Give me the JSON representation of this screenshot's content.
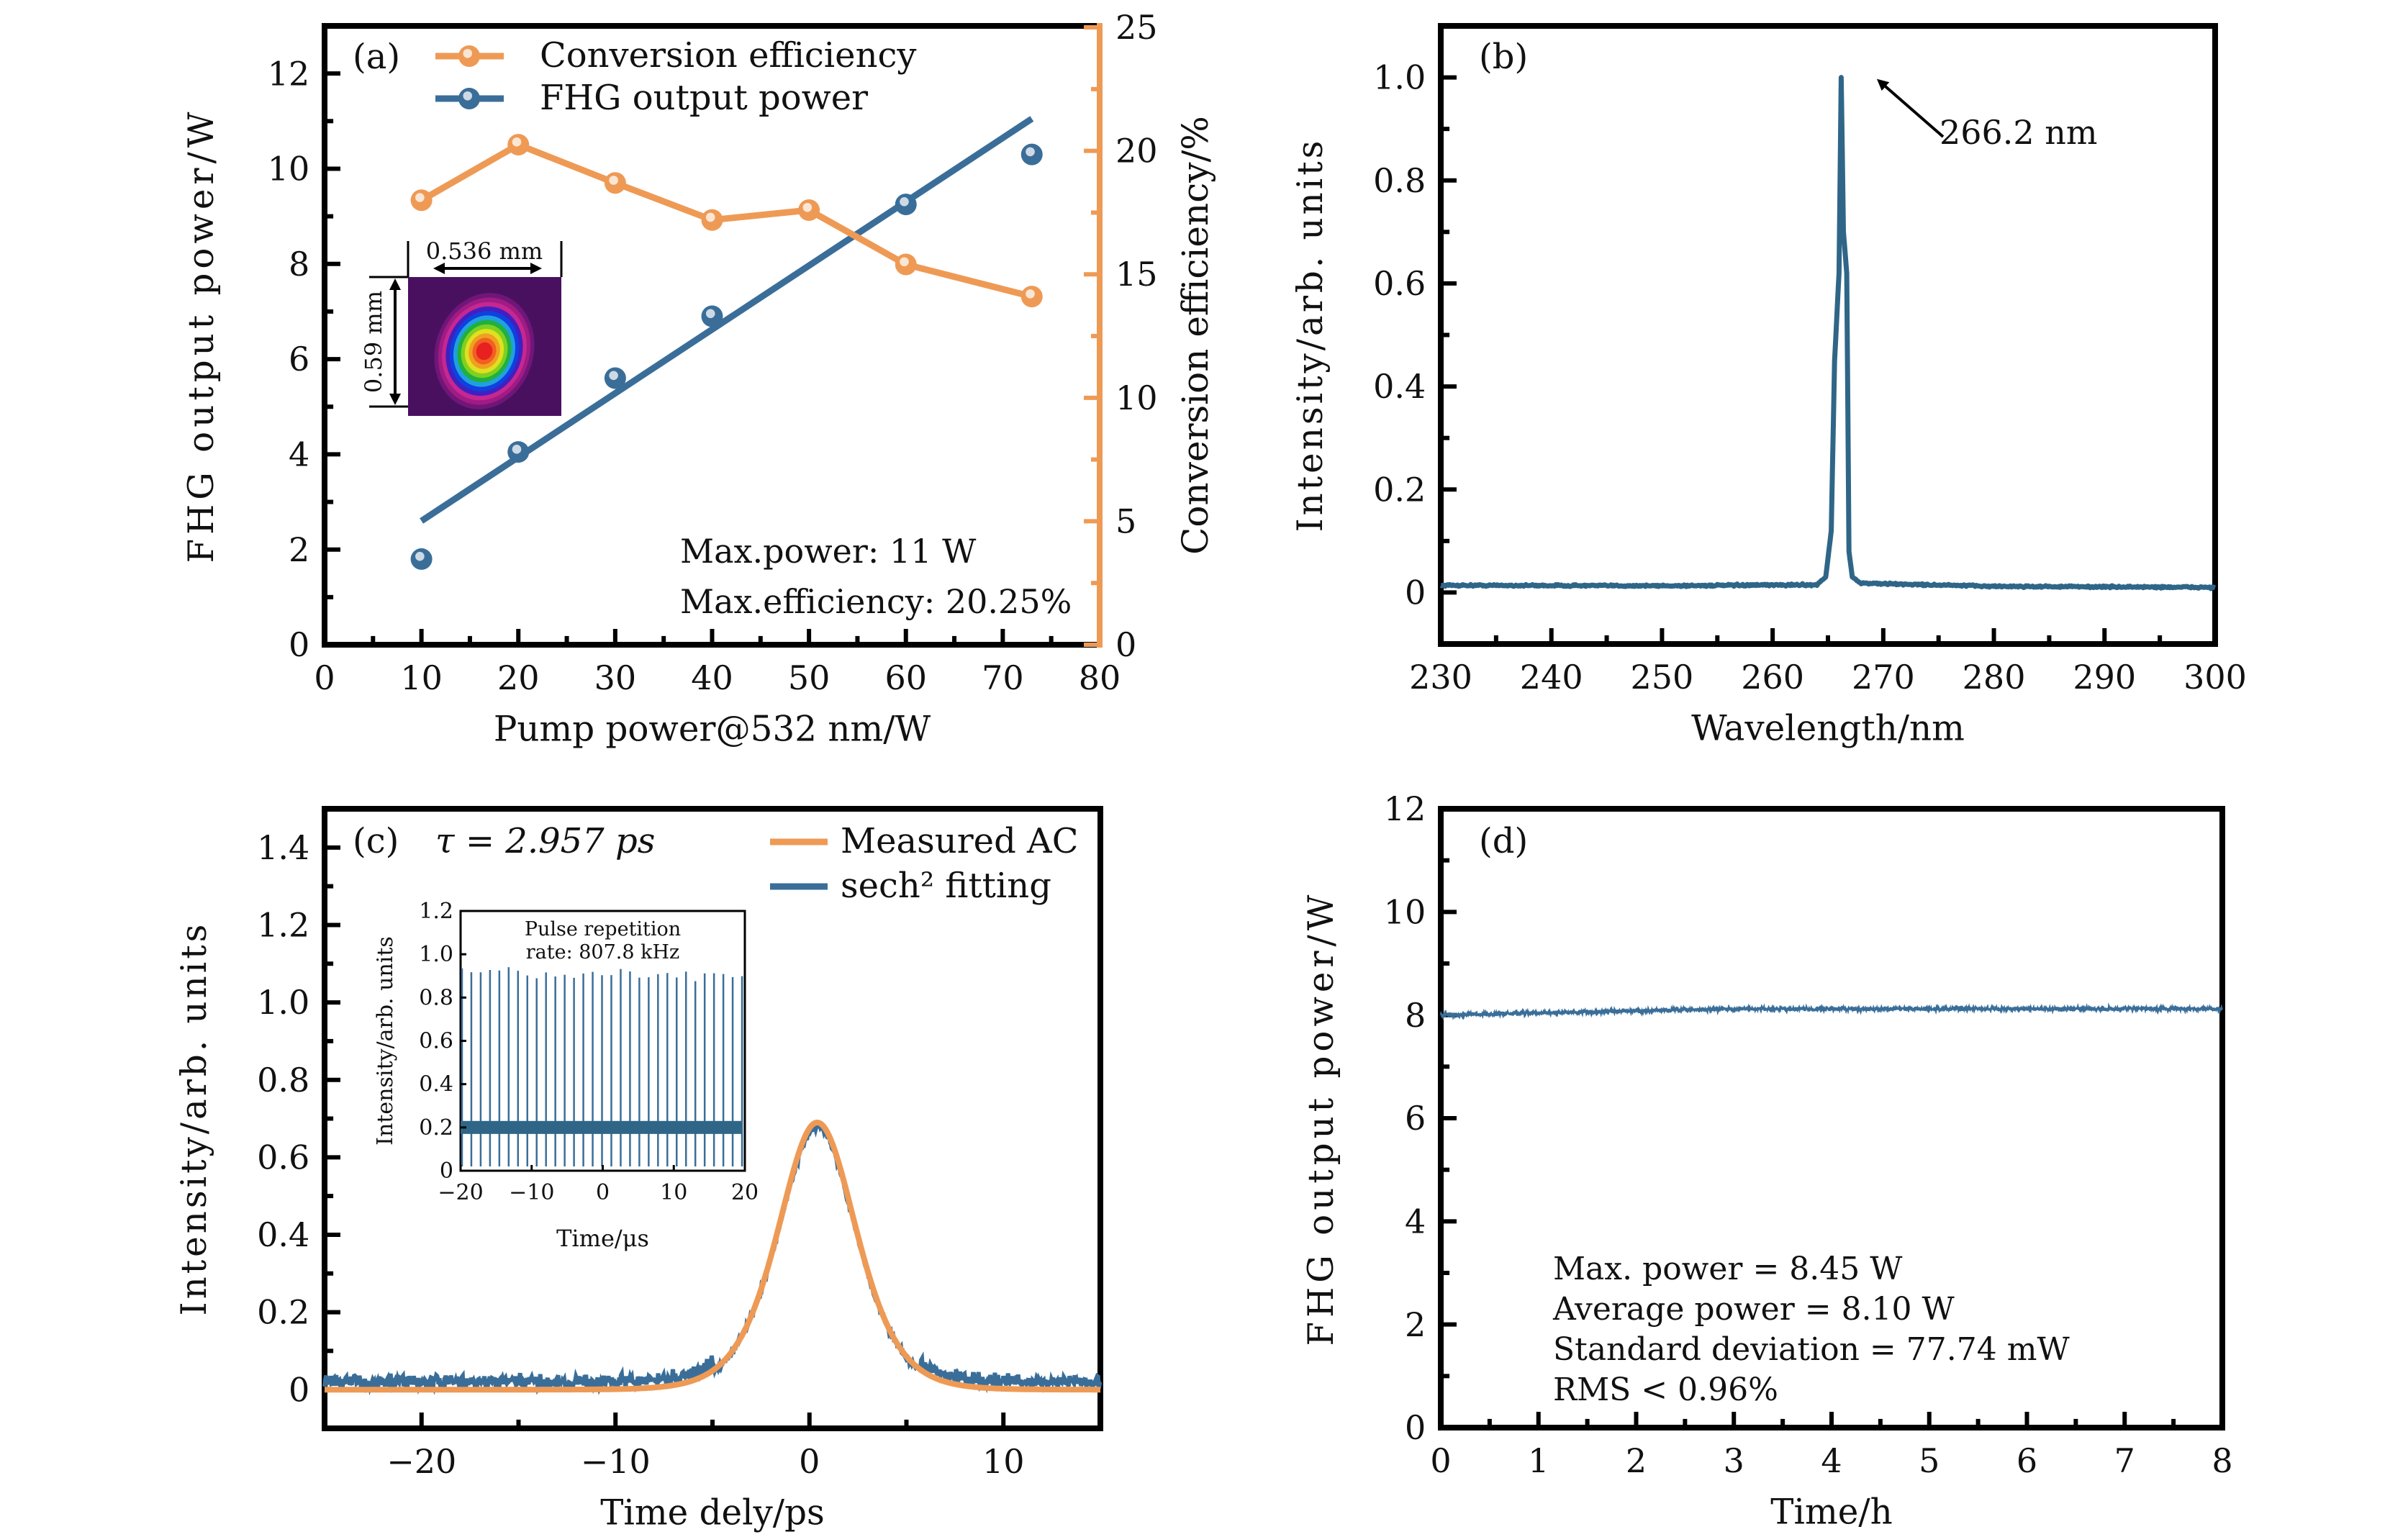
{
  "colors": {
    "blue": "#3A6E99",
    "orange": "#EE9A55",
    "axis": "#000000"
  },
  "chart_data": [
    {
      "id": "a",
      "type": "line",
      "panel_label": "(a)",
      "xlabel": "Pump power@532 nm/W",
      "ylabel": "FHG output power/W",
      "ylabel_right": "Conversion efficiency/%",
      "xlim": [
        0,
        80
      ],
      "ylim": [
        0,
        13
      ],
      "ylim_right": [
        0,
        25.06
      ],
      "xticks": [
        0,
        10,
        20,
        30,
        40,
        50,
        60,
        70,
        80
      ],
      "yticks": [
        0,
        2,
        4,
        6,
        8,
        10,
        12
      ],
      "yticks_right": [
        0,
        5,
        10,
        15,
        20,
        25
      ],
      "legend": [
        "Conversion efficiency",
        "FHG output power"
      ],
      "legend_position": "top-left",
      "series": [
        {
          "name": "Conversion efficiency",
          "axis": "right",
          "color": "orange",
          "x": [
            10,
            20,
            30,
            40,
            50,
            60,
            73
          ],
          "y": [
            18.0,
            20.25,
            18.7,
            17.2,
            17.6,
            15.4,
            14.1
          ]
        },
        {
          "name": "FHG output power",
          "axis": "left",
          "color": "blue",
          "style": "markers",
          "x": [
            10,
            20,
            30,
            40,
            60,
            73
          ],
          "y": [
            1.8,
            4.05,
            5.6,
            6.9,
            9.25,
            10.3
          ]
        },
        {
          "name": "FHG output power linear fit",
          "axis": "left",
          "color": "blue",
          "style": "line",
          "x": [
            10,
            73
          ],
          "y": [
            2.6,
            11.05
          ]
        }
      ],
      "annotations": [
        "Max.power: 11 W",
        "Max.efficiency: 20.25%"
      ],
      "inset": {
        "description": "beam profile",
        "width_label": "0.536 mm",
        "height_label": "0.59 mm"
      }
    },
    {
      "id": "b",
      "type": "line",
      "panel_label": "(b)",
      "xlabel": "Wavelength/nm",
      "ylabel": "Intensity/arb. units",
      "xlim": [
        230,
        300
      ],
      "ylim": [
        -0.1,
        1.1
      ],
      "xticks": [
        230,
        240,
        250,
        260,
        270,
        280,
        290,
        300
      ],
      "yticks": [
        0,
        0.2,
        0.4,
        0.6,
        0.8,
        1.0
      ],
      "ytick_labels": [
        "0",
        "0.2",
        "0.4",
        "0.6",
        "0.8",
        "1.0"
      ],
      "series": [
        {
          "name": "spectrum",
          "color": "blue",
          "peak_wavelength": 266.2,
          "peak_value": 1.0,
          "baseline": 0.012,
          "x": [
            230,
            250,
            264,
            264.8,
            265.3,
            265.6,
            266.0,
            266.2,
            266.4,
            266.7,
            266.9,
            267.2,
            268,
            280,
            300
          ],
          "y": [
            0.014,
            0.013,
            0.015,
            0.03,
            0.12,
            0.45,
            0.62,
            1.0,
            0.7,
            0.62,
            0.08,
            0.03,
            0.018,
            0.012,
            0.01
          ]
        }
      ],
      "annotations": [
        "266.2 nm"
      ]
    },
    {
      "id": "c",
      "type": "line",
      "panel_label": "(c)",
      "xlabel": "Time dely/ps",
      "ylabel": "Intensity/arb. units",
      "xlim": [
        -25,
        15
      ],
      "ylim": [
        -0.1,
        1.5
      ],
      "xticks": [
        -20,
        -10,
        0,
        10
      ],
      "xtick_labels": [
        "−20",
        "−10",
        "0",
        "10"
      ],
      "yticks": [
        0,
        0.2,
        0.4,
        0.6,
        0.8,
        1.0,
        1.2,
        1.4
      ],
      "ytick_labels": [
        "0",
        "0.2",
        "0.4",
        "0.6",
        "0.8",
        "1.0",
        "1.2",
        "1.4"
      ],
      "legend": [
        "Measured AC",
        "sech² fitting"
      ],
      "legend_position": "top-right",
      "series": [
        {
          "name": "Measured AC",
          "color": "orange",
          "peak_x": 0.4,
          "peak_y": 0.69,
          "baseline": 0.0,
          "fwhm_ps": 4.56
        },
        {
          "name": "sech² fitting",
          "color": "blue",
          "peak_x": 0.4,
          "peak_y": 0.68,
          "baseline": 0.02,
          "noise": 0.03
        }
      ],
      "annotations": [
        "τ = 2.957 ps"
      ],
      "inset": {
        "type": "line",
        "title_line1": "Pulse repetition",
        "title_line2": "rate: 807.8 kHz",
        "xlabel": "Time/μs",
        "ylabel": "Intensity/arb. units",
        "xlim": [
          -20,
          20
        ],
        "ylim": [
          0,
          1.2
        ],
        "xticks": [
          -20,
          -10,
          0,
          10,
          20
        ],
        "xtick_labels": [
          "−20",
          "−10",
          "0",
          "10",
          "20"
        ],
        "yticks": [
          0,
          0.2,
          0.4,
          0.6,
          0.8,
          1.0,
          1.2
        ],
        "ytick_labels": [
          "0",
          "0.2",
          "0.4",
          "0.6",
          "0.8",
          "1.0",
          "1.2"
        ],
        "baseline": 0.2,
        "pulse_count": 31,
        "pulse_peak": 0.91
      }
    },
    {
      "id": "d",
      "type": "line",
      "panel_label": "(d)",
      "xlabel": "Time/h",
      "ylabel": "FHG output power/W",
      "xlim": [
        0,
        8
      ],
      "ylim": [
        0,
        12
      ],
      "xticks": [
        0,
        1,
        2,
        3,
        4,
        5,
        6,
        7,
        8
      ],
      "yticks": [
        0,
        2,
        4,
        6,
        8,
        10,
        12
      ],
      "series": [
        {
          "name": "FHG output power",
          "color": "blue",
          "start": 8.0,
          "end": 8.12,
          "mean": 8.1,
          "noise": 0.06
        }
      ],
      "annotations": [
        "Max. power = 8.45 W",
        "Average power = 8.10 W",
        "Standard deviation = 77.74 mW",
        "RMS < 0.96%"
      ]
    }
  ]
}
